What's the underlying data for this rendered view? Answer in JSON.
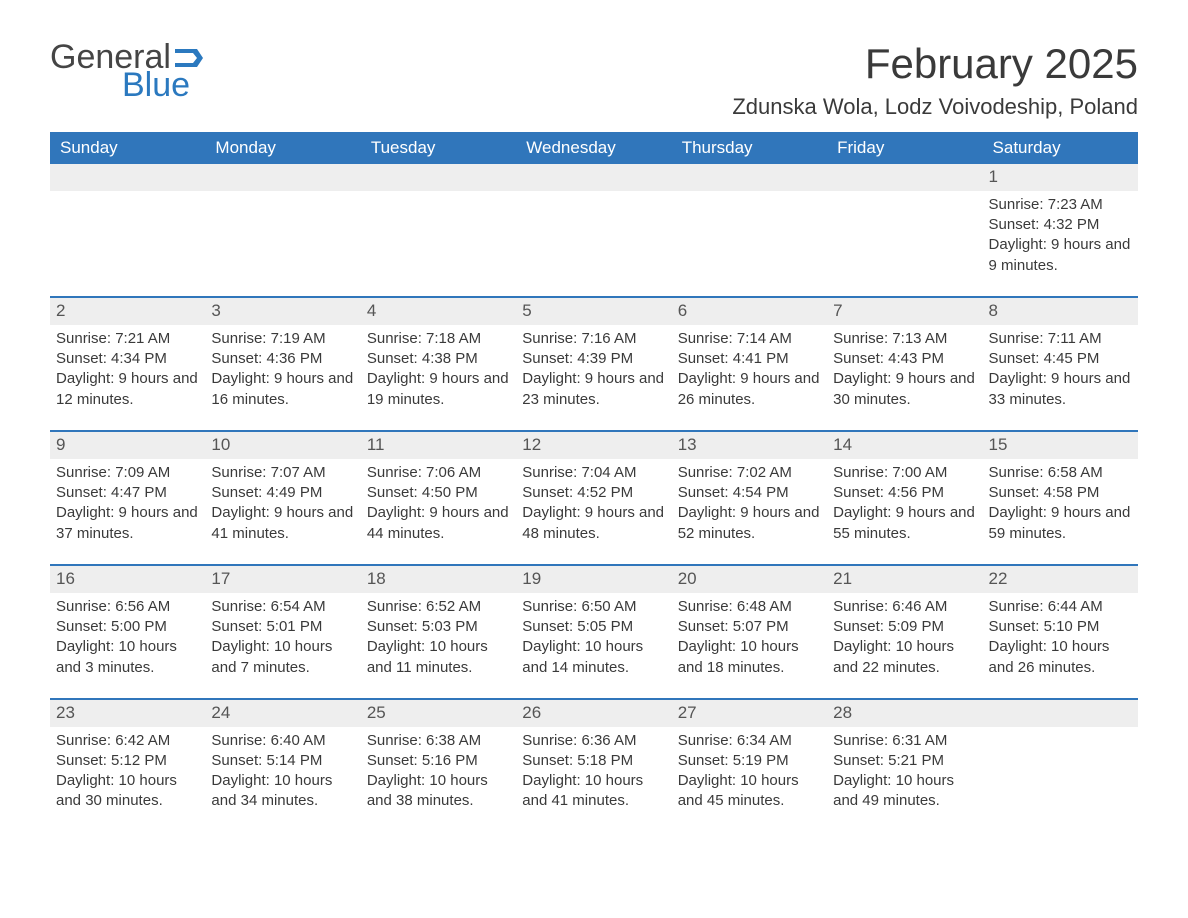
{
  "brand": {
    "part1": "General",
    "part2": "Blue"
  },
  "title": "February 2025",
  "location": "Zdunska Wola, Lodz Voivodeship, Poland",
  "colors": {
    "header_bg": "#3076bb",
    "header_text": "#ffffff",
    "daynum_bg": "#eeeeee",
    "text": "#3a3a3a"
  },
  "weekdays": [
    "Sunday",
    "Monday",
    "Tuesday",
    "Wednesday",
    "Thursday",
    "Friday",
    "Saturday"
  ],
  "weeks": [
    [
      null,
      null,
      null,
      null,
      null,
      null,
      {
        "n": "1",
        "sr": "Sunrise: 7:23 AM",
        "ss": "Sunset: 4:32 PM",
        "dl": "Daylight: 9 hours and 9 minutes."
      }
    ],
    [
      {
        "n": "2",
        "sr": "Sunrise: 7:21 AM",
        "ss": "Sunset: 4:34 PM",
        "dl": "Daylight: 9 hours and 12 minutes."
      },
      {
        "n": "3",
        "sr": "Sunrise: 7:19 AM",
        "ss": "Sunset: 4:36 PM",
        "dl": "Daylight: 9 hours and 16 minutes."
      },
      {
        "n": "4",
        "sr": "Sunrise: 7:18 AM",
        "ss": "Sunset: 4:38 PM",
        "dl": "Daylight: 9 hours and 19 minutes."
      },
      {
        "n": "5",
        "sr": "Sunrise: 7:16 AM",
        "ss": "Sunset: 4:39 PM",
        "dl": "Daylight: 9 hours and 23 minutes."
      },
      {
        "n": "6",
        "sr": "Sunrise: 7:14 AM",
        "ss": "Sunset: 4:41 PM",
        "dl": "Daylight: 9 hours and 26 minutes."
      },
      {
        "n": "7",
        "sr": "Sunrise: 7:13 AM",
        "ss": "Sunset: 4:43 PM",
        "dl": "Daylight: 9 hours and 30 minutes."
      },
      {
        "n": "8",
        "sr": "Sunrise: 7:11 AM",
        "ss": "Sunset: 4:45 PM",
        "dl": "Daylight: 9 hours and 33 minutes."
      }
    ],
    [
      {
        "n": "9",
        "sr": "Sunrise: 7:09 AM",
        "ss": "Sunset: 4:47 PM",
        "dl": "Daylight: 9 hours and 37 minutes."
      },
      {
        "n": "10",
        "sr": "Sunrise: 7:07 AM",
        "ss": "Sunset: 4:49 PM",
        "dl": "Daylight: 9 hours and 41 minutes."
      },
      {
        "n": "11",
        "sr": "Sunrise: 7:06 AM",
        "ss": "Sunset: 4:50 PM",
        "dl": "Daylight: 9 hours and 44 minutes."
      },
      {
        "n": "12",
        "sr": "Sunrise: 7:04 AM",
        "ss": "Sunset: 4:52 PM",
        "dl": "Daylight: 9 hours and 48 minutes."
      },
      {
        "n": "13",
        "sr": "Sunrise: 7:02 AM",
        "ss": "Sunset: 4:54 PM",
        "dl": "Daylight: 9 hours and 52 minutes."
      },
      {
        "n": "14",
        "sr": "Sunrise: 7:00 AM",
        "ss": "Sunset: 4:56 PM",
        "dl": "Daylight: 9 hours and 55 minutes."
      },
      {
        "n": "15",
        "sr": "Sunrise: 6:58 AM",
        "ss": "Sunset: 4:58 PM",
        "dl": "Daylight: 9 hours and 59 minutes."
      }
    ],
    [
      {
        "n": "16",
        "sr": "Sunrise: 6:56 AM",
        "ss": "Sunset: 5:00 PM",
        "dl": "Daylight: 10 hours and 3 minutes."
      },
      {
        "n": "17",
        "sr": "Sunrise: 6:54 AM",
        "ss": "Sunset: 5:01 PM",
        "dl": "Daylight: 10 hours and 7 minutes."
      },
      {
        "n": "18",
        "sr": "Sunrise: 6:52 AM",
        "ss": "Sunset: 5:03 PM",
        "dl": "Daylight: 10 hours and 11 minutes."
      },
      {
        "n": "19",
        "sr": "Sunrise: 6:50 AM",
        "ss": "Sunset: 5:05 PM",
        "dl": "Daylight: 10 hours and 14 minutes."
      },
      {
        "n": "20",
        "sr": "Sunrise: 6:48 AM",
        "ss": "Sunset: 5:07 PM",
        "dl": "Daylight: 10 hours and 18 minutes."
      },
      {
        "n": "21",
        "sr": "Sunrise: 6:46 AM",
        "ss": "Sunset: 5:09 PM",
        "dl": "Daylight: 10 hours and 22 minutes."
      },
      {
        "n": "22",
        "sr": "Sunrise: 6:44 AM",
        "ss": "Sunset: 5:10 PM",
        "dl": "Daylight: 10 hours and 26 minutes."
      }
    ],
    [
      {
        "n": "23",
        "sr": "Sunrise: 6:42 AM",
        "ss": "Sunset: 5:12 PM",
        "dl": "Daylight: 10 hours and 30 minutes."
      },
      {
        "n": "24",
        "sr": "Sunrise: 6:40 AM",
        "ss": "Sunset: 5:14 PM",
        "dl": "Daylight: 10 hours and 34 minutes."
      },
      {
        "n": "25",
        "sr": "Sunrise: 6:38 AM",
        "ss": "Sunset: 5:16 PM",
        "dl": "Daylight: 10 hours and 38 minutes."
      },
      {
        "n": "26",
        "sr": "Sunrise: 6:36 AM",
        "ss": "Sunset: 5:18 PM",
        "dl": "Daylight: 10 hours and 41 minutes."
      },
      {
        "n": "27",
        "sr": "Sunrise: 6:34 AM",
        "ss": "Sunset: 5:19 PM",
        "dl": "Daylight: 10 hours and 45 minutes."
      },
      {
        "n": "28",
        "sr": "Sunrise: 6:31 AM",
        "ss": "Sunset: 5:21 PM",
        "dl": "Daylight: 10 hours and 49 minutes."
      },
      null
    ]
  ]
}
